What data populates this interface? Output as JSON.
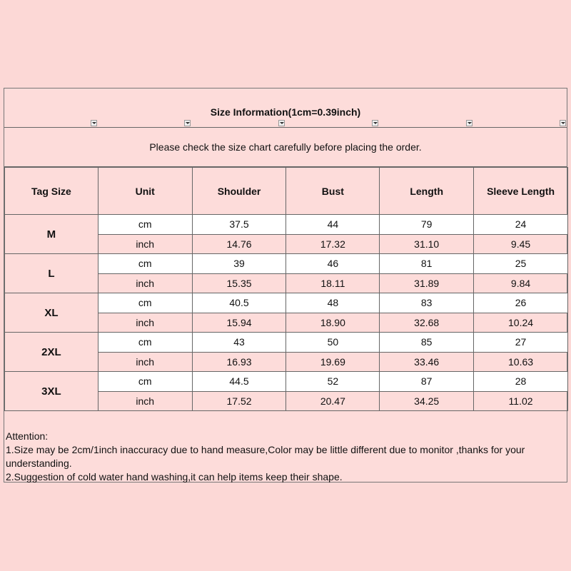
{
  "title": "Size Information(1cm=0.39inch)",
  "notice": "Please check the size chart carefully before placing the order.",
  "headers": [
    "Tag Size",
    "Unit",
    "Shoulder",
    "Bust",
    "Length",
    "Sleeve Length"
  ],
  "sizes": [
    {
      "tag": "M",
      "cm": [
        "37.5",
        "44",
        "79",
        "24"
      ],
      "inch": [
        "14.76",
        "17.32",
        "31.10",
        "9.45"
      ]
    },
    {
      "tag": "L",
      "cm": [
        "39",
        "46",
        "81",
        "25"
      ],
      "inch": [
        "15.35",
        "18.11",
        "31.89",
        "9.84"
      ]
    },
    {
      "tag": "XL",
      "cm": [
        "40.5",
        "48",
        "83",
        "26"
      ],
      "inch": [
        "15.94",
        "18.90",
        "32.68",
        "10.24"
      ]
    },
    {
      "tag": "2XL",
      "cm": [
        "43",
        "50",
        "85",
        "27"
      ],
      "inch": [
        "16.93",
        "19.69",
        "33.46",
        "10.63"
      ]
    },
    {
      "tag": "3XL",
      "cm": [
        "44.5",
        "52",
        "87",
        "28"
      ],
      "inch": [
        "17.52",
        "20.47",
        "34.25",
        "11.02"
      ]
    }
  ],
  "units": {
    "cm": "cm",
    "inch": "inch"
  },
  "attention": {
    "heading": "Attention:",
    "lines": [
      "1.Size may be 2cm/1inch inaccuracy due to hand measure,Color may be little different due to monitor ,thanks for your understanding.",
      "2.Suggestion of cold water hand washing,it can help items keep their shape."
    ]
  },
  "colors": {
    "background": "#fcd8d6",
    "cell": "#fddcda",
    "alt": "#ffffff"
  }
}
